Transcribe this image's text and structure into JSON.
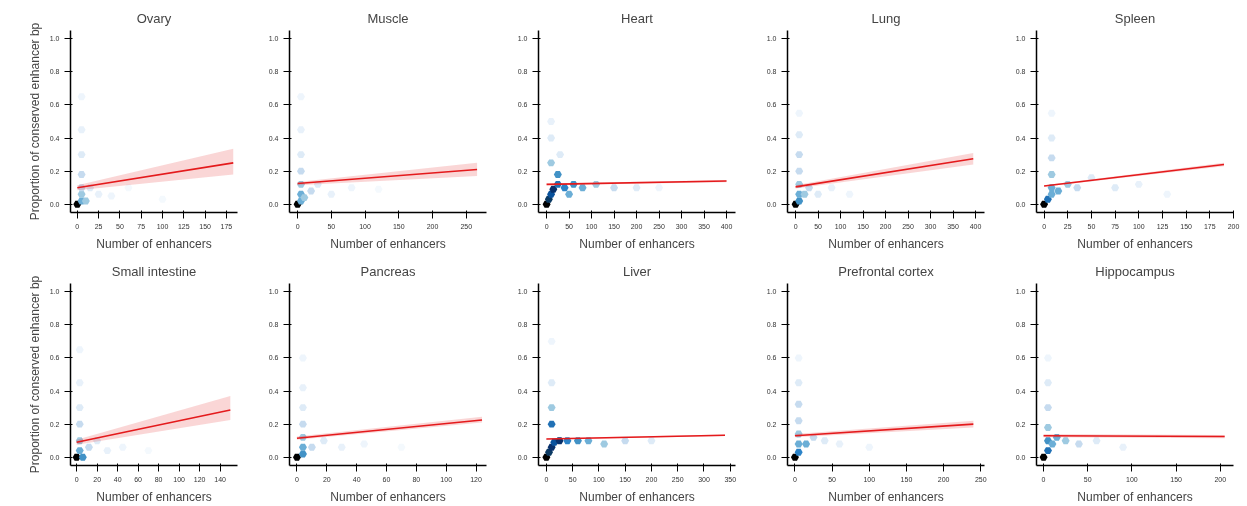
{
  "chart_data": [
    {
      "type": "line",
      "title": "Ovary",
      "xlabel": "Number of enhancers",
      "ylabel": "Proportion of conserved enhancer bp",
      "xlim": [
        -8,
        188
      ],
      "xticks": [
        0,
        25,
        50,
        75,
        100,
        125,
        150,
        175
      ],
      "ylim": [
        -0.05,
        1.05
      ],
      "yticks": [
        {
          "value": 0,
          "label": "0.0"
        },
        {
          "value": 0.2,
          "label": "0.2"
        },
        {
          "value": 0.4,
          "label": "0.4"
        },
        {
          "value": 0.6,
          "label": "0.6"
        },
        {
          "value": 0.8,
          "label": "0.8"
        },
        {
          "value": 1,
          "label": "1.0"
        }
      ],
      "grid": false,
      "series": [
        {
          "type": "scatter",
          "x": [
            0,
            5,
            5,
            5,
            5,
            5,
            5,
            10,
            15,
            25,
            40,
            5,
            60,
            100
          ],
          "values": [
            0,
            0.02,
            0.06,
            0.1,
            0.18,
            0.3,
            0.45,
            0.02,
            0.1,
            0.06,
            0.05,
            0.65,
            0.1,
            0.03
          ],
          "colors": [
            "#000000",
            "#6baed6",
            "#9ecae1",
            "#c6dbef",
            "#c6dbef",
            "#deebf7",
            "#e8f1fa",
            "#9ecae1",
            "#deebf7",
            "#e8f1fa",
            "#eef5fc",
            "#eef5fc",
            "#f4f9fd",
            "#f4f9fd"
          ]
        },
        {
          "color": "#e41a1c",
          "x": [
            0,
            183
          ],
          "values": [
            0.1,
            0.25
          ],
          "lower": [
            0.085,
            0.18
          ],
          "upper": [
            0.115,
            0.335
          ]
        }
      ]
    },
    {
      "type": "line",
      "title": "Muscle",
      "xlabel": "Number of enhancers",
      "xlim": [
        -12,
        280
      ],
      "xticks": [
        0,
        50,
        100,
        150,
        200,
        250
      ],
      "ylim": [
        -0.05,
        1.05
      ],
      "yticks": [
        {
          "value": 0,
          "label": "0.0"
        },
        {
          "value": 0.2,
          "label": "0.2"
        },
        {
          "value": 0.4,
          "label": "0.4"
        },
        {
          "value": 0.6,
          "label": "0.6"
        },
        {
          "value": 0.8,
          "label": "0.8"
        },
        {
          "value": 1,
          "label": "1.0"
        }
      ],
      "grid": false,
      "series": [
        {
          "type": "scatter",
          "x": [
            0,
            5,
            5,
            5,
            5,
            5,
            5,
            10,
            20,
            30,
            50,
            80,
            120,
            5
          ],
          "values": [
            0,
            0.02,
            0.06,
            0.12,
            0.2,
            0.3,
            0.45,
            0.04,
            0.08,
            0.12,
            0.06,
            0.1,
            0.09,
            0.65
          ],
          "colors": [
            "#000000",
            "#6baed6",
            "#6baed6",
            "#9ecae1",
            "#c6dbef",
            "#deebf7",
            "#e8f1fa",
            "#9ecae1",
            "#c6dbef",
            "#deebf7",
            "#e8f1fa",
            "#eef5fc",
            "#f4f9fd",
            "#eef5fc"
          ]
        },
        {
          "color": "#e41a1c",
          "x": [
            0,
            266
          ],
          "values": [
            0.125,
            0.21
          ],
          "lower": [
            0.115,
            0.17
          ],
          "upper": [
            0.135,
            0.25
          ]
        }
      ]
    },
    {
      "type": "line",
      "title": "Heart",
      "xlabel": "Number of enhancers",
      "xlim": [
        -18,
        420
      ],
      "xticks": [
        0,
        50,
        100,
        150,
        200,
        250,
        300,
        350,
        400
      ],
      "ylim": [
        -0.05,
        1.05
      ],
      "yticks": [
        {
          "value": 0,
          "label": "0.0"
        },
        {
          "value": 0.2,
          "label": "0.2"
        },
        {
          "value": 0.4,
          "label": "0.4"
        },
        {
          "value": 0.6,
          "label": "0.6"
        },
        {
          "value": 0.8,
          "label": "0.8"
        },
        {
          "value": 1,
          "label": "1.0"
        }
      ],
      "grid": false,
      "series": [
        {
          "type": "scatter",
          "x": [
            0,
            5,
            10,
            15,
            25,
            40,
            60,
            25,
            50,
            80,
            110,
            150,
            200,
            10,
            10,
            30,
            10,
            250
          ],
          "values": [
            0,
            0.03,
            0.06,
            0.09,
            0.12,
            0.1,
            0.12,
            0.18,
            0.06,
            0.1,
            0.12,
            0.1,
            0.1,
            0.25,
            0.4,
            0.3,
            0.5,
            0.1
          ],
          "colors": [
            "#000000",
            "#0b3a63",
            "#08519c",
            "#08306b",
            "#2171b5",
            "#2b83c8",
            "#4292c6",
            "#4292c6",
            "#6baed6",
            "#6baed6",
            "#9ecae1",
            "#c6dbef",
            "#deebf7",
            "#9ecae1",
            "#deebf7",
            "#deebf7",
            "#e8f1fa",
            "#eef5fc"
          ]
        },
        {
          "color": "#e41a1c",
          "x": [
            0,
            400
          ],
          "values": [
            0.12,
            0.14
          ],
          "lower": [
            0.115,
            0.133
          ],
          "upper": [
            0.125,
            0.147
          ]
        }
      ]
    },
    {
      "type": "line",
      "title": "Lung",
      "xlabel": "Number of enhancers",
      "xlim": [
        -18,
        420
      ],
      "xticks": [
        0,
        50,
        100,
        150,
        200,
        250,
        300,
        350,
        400
      ],
      "ylim": [
        -0.05,
        1.05
      ],
      "yticks": [
        {
          "value": 0,
          "label": "0.0"
        },
        {
          "value": 0.2,
          "label": "0.2"
        },
        {
          "value": 0.4,
          "label": "0.4"
        },
        {
          "value": 0.6,
          "label": "0.6"
        },
        {
          "value": 0.8,
          "label": "0.8"
        },
        {
          "value": 1,
          "label": "1.0"
        }
      ],
      "grid": false,
      "series": [
        {
          "type": "scatter",
          "x": [
            0,
            8,
            8,
            8,
            8,
            8,
            8,
            20,
            30,
            50,
            80,
            120,
            8
          ],
          "values": [
            0,
            0.02,
            0.06,
            0.12,
            0.2,
            0.3,
            0.42,
            0.06,
            0.1,
            0.06,
            0.1,
            0.06,
            0.55
          ],
          "colors": [
            "#000000",
            "#4292c6",
            "#6baed6",
            "#9ecae1",
            "#c6dbef",
            "#c6dbef",
            "#deebf7",
            "#9ecae1",
            "#c6dbef",
            "#deebf7",
            "#e8f1fa",
            "#eef5fc",
            "#eef5fc"
          ]
        },
        {
          "color": "#e41a1c",
          "x": [
            0,
            395
          ],
          "values": [
            0.105,
            0.275
          ],
          "lower": [
            0.095,
            0.24
          ],
          "upper": [
            0.115,
            0.31
          ]
        }
      ]
    },
    {
      "type": "line",
      "title": "Spleen",
      "xlabel": "Number of enhancers",
      "xlim": [
        -8,
        200
      ],
      "xticks": [
        0,
        25,
        50,
        75,
        100,
        125,
        150,
        175,
        200
      ],
      "ylim": [
        -0.05,
        1.05
      ],
      "yticks": [
        {
          "value": 0,
          "label": "0.0"
        },
        {
          "value": 0.2,
          "label": "0.2"
        },
        {
          "value": 0.4,
          "label": "0.4"
        },
        {
          "value": 0.6,
          "label": "0.6"
        },
        {
          "value": 0.8,
          "label": "0.8"
        },
        {
          "value": 1,
          "label": "1.0"
        }
      ],
      "grid": false,
      "series": [
        {
          "type": "scatter",
          "x": [
            0,
            4,
            8,
            8,
            8,
            8,
            8,
            15,
            25,
            35,
            50,
            75,
            100,
            130,
            8
          ],
          "values": [
            0,
            0.03,
            0.06,
            0.1,
            0.18,
            0.28,
            0.4,
            0.08,
            0.12,
            0.1,
            0.16,
            0.1,
            0.12,
            0.06,
            0.55
          ],
          "colors": [
            "#000000",
            "#2171b5",
            "#6baed6",
            "#6baed6",
            "#9ecae1",
            "#c6dbef",
            "#deebf7",
            "#6baed6",
            "#9ecae1",
            "#c6dbef",
            "#deebf7",
            "#deebf7",
            "#e8f1fa",
            "#eef5fc",
            "#eef5fc"
          ]
        },
        {
          "color": "#e41a1c",
          "x": [
            0,
            190
          ],
          "values": [
            0.11,
            0.24
          ],
          "lower": [
            0.105,
            0.23
          ],
          "upper": [
            0.115,
            0.25
          ]
        }
      ]
    },
    {
      "type": "line",
      "title": "Small intestine",
      "xlabel": "Number of enhancers",
      "ylabel": "Proportion of conserved enhancer bp",
      "xlim": [
        -6,
        157
      ],
      "xticks": [
        0,
        20,
        40,
        60,
        80,
        100,
        120,
        140
      ],
      "ylim": [
        -0.05,
        1.05
      ],
      "yticks": [
        {
          "value": 0,
          "label": "0.0"
        },
        {
          "value": 0.2,
          "label": "0.2"
        },
        {
          "value": 0.4,
          "label": "0.4"
        },
        {
          "value": 0.6,
          "label": "0.6"
        },
        {
          "value": 0.8,
          "label": "0.8"
        },
        {
          "value": 1,
          "label": "1.0"
        }
      ],
      "grid": false,
      "series": [
        {
          "type": "scatter",
          "x": [
            0,
            6,
            3,
            3,
            3,
            3,
            3,
            12,
            20,
            30,
            45,
            3,
            70
          ],
          "values": [
            0,
            0.0,
            0.04,
            0.1,
            0.2,
            0.3,
            0.45,
            0.06,
            0.1,
            0.04,
            0.06,
            0.65,
            0.04
          ],
          "colors": [
            "#000000",
            "#4292c6",
            "#6baed6",
            "#9ecae1",
            "#c6dbef",
            "#deebf7",
            "#e8f1fa",
            "#c6dbef",
            "#deebf7",
            "#e8f1fa",
            "#eef5fc",
            "#eef5fc",
            "#f4f9fd"
          ]
        },
        {
          "color": "#e41a1c",
          "x": [
            0,
            150
          ],
          "values": [
            0.09,
            0.285
          ],
          "lower": [
            0.075,
            0.225
          ],
          "upper": [
            0.105,
            0.37
          ]
        }
      ]
    },
    {
      "type": "line",
      "title": "Pancreas",
      "xlabel": "Number of enhancers",
      "xlim": [
        -5,
        127
      ],
      "xticks": [
        0,
        20,
        40,
        60,
        80,
        100,
        120
      ],
      "ylim": [
        -0.05,
        1.05
      ],
      "yticks": [
        {
          "value": 0,
          "label": "0.0"
        },
        {
          "value": 0.2,
          "label": "0.2"
        },
        {
          "value": 0.4,
          "label": "0.4"
        },
        {
          "value": 0.6,
          "label": "0.6"
        },
        {
          "value": 0.8,
          "label": "0.8"
        },
        {
          "value": 1,
          "label": "1.0"
        }
      ],
      "grid": false,
      "series": [
        {
          "type": "scatter",
          "x": [
            0,
            4,
            4,
            4,
            4,
            4,
            4,
            10,
            18,
            30,
            45,
            4,
            70
          ],
          "values": [
            0,
            0.02,
            0.06,
            0.12,
            0.2,
            0.3,
            0.42,
            0.06,
            0.1,
            0.06,
            0.08,
            0.6,
            0.06
          ],
          "colors": [
            "#000000",
            "#4292c6",
            "#6baed6",
            "#9ecae1",
            "#c6dbef",
            "#deebf7",
            "#e8f1fa",
            "#c6dbef",
            "#deebf7",
            "#e8f1fa",
            "#eef5fc",
            "#eef5fc",
            "#f4f9fd"
          ]
        },
        {
          "color": "#e41a1c",
          "x": [
            0,
            124
          ],
          "values": [
            0.115,
            0.225
          ],
          "lower": [
            0.105,
            0.21
          ],
          "upper": [
            0.125,
            0.245
          ]
        }
      ]
    },
    {
      "type": "line",
      "title": "Liver",
      "xlabel": "Number of enhancers",
      "xlim": [
        -15,
        360
      ],
      "xticks": [
        0,
        50,
        100,
        150,
        200,
        250,
        300,
        350
      ],
      "ylim": [
        -0.05,
        1.05
      ],
      "yticks": [
        {
          "value": 0,
          "label": "0.0"
        },
        {
          "value": 0.2,
          "label": "0.2"
        },
        {
          "value": 0.4,
          "label": "0.4"
        },
        {
          "value": 0.6,
          "label": "0.6"
        },
        {
          "value": 0.8,
          "label": "0.8"
        },
        {
          "value": 1,
          "label": "1.0"
        }
      ],
      "grid": false,
      "series": [
        {
          "type": "scatter",
          "x": [
            0,
            5,
            10,
            15,
            25,
            40,
            60,
            10,
            80,
            110,
            150,
            200,
            10,
            10,
            10
          ],
          "values": [
            0,
            0.03,
            0.06,
            0.09,
            0.1,
            0.1,
            0.1,
            0.2,
            0.1,
            0.08,
            0.1,
            0.1,
            0.3,
            0.45,
            0.7
          ],
          "colors": [
            "#000000",
            "#0b3a63",
            "#08306b",
            "#08519c",
            "#08306b",
            "#2b83c8",
            "#4292c6",
            "#2171b5",
            "#6baed6",
            "#9ecae1",
            "#c6dbef",
            "#deebf7",
            "#9ecae1",
            "#deebf7",
            "#eef5fc"
          ]
        },
        {
          "color": "#e41a1c",
          "x": [
            0,
            340
          ],
          "values": [
            0.11,
            0.133
          ],
          "lower": [
            0.105,
            0.128
          ],
          "upper": [
            0.115,
            0.138
          ]
        }
      ]
    },
    {
      "type": "line",
      "title": "Prefrontal cortex",
      "xlabel": "Number of enhancers",
      "xlim": [
        -10,
        255
      ],
      "xticks": [
        0,
        50,
        100,
        150,
        200,
        250
      ],
      "ylim": [
        -0.05,
        1.05
      ],
      "yticks": [
        {
          "value": 0,
          "label": "0.0"
        },
        {
          "value": 0.2,
          "label": "0.2"
        },
        {
          "value": 0.4,
          "label": "0.4"
        },
        {
          "value": 0.6,
          "label": "0.6"
        },
        {
          "value": 0.8,
          "label": "0.8"
        },
        {
          "value": 1,
          "label": "1.0"
        }
      ],
      "grid": false,
      "series": [
        {
          "type": "scatter",
          "x": [
            0,
            5,
            5,
            5,
            5,
            5,
            5,
            15,
            25,
            40,
            60,
            100,
            5
          ],
          "values": [
            0,
            0.03,
            0.08,
            0.14,
            0.22,
            0.32,
            0.45,
            0.08,
            0.12,
            0.1,
            0.08,
            0.06,
            0.6
          ],
          "colors": [
            "#000000",
            "#2b83c8",
            "#6baed6",
            "#9ecae1",
            "#c6dbef",
            "#c6dbef",
            "#deebf7",
            "#6baed6",
            "#c6dbef",
            "#deebf7",
            "#e8f1fa",
            "#eef5fc",
            "#eef5fc"
          ]
        },
        {
          "color": "#e41a1c",
          "x": [
            0,
            240
          ],
          "values": [
            0.13,
            0.2
          ],
          "lower": [
            0.12,
            0.18
          ],
          "upper": [
            0.14,
            0.22
          ]
        }
      ]
    },
    {
      "type": "line",
      "title": "Hippocampus",
      "xlabel": "Number of enhancers",
      "xlim": [
        -8,
        215
      ],
      "xticks": [
        0,
        50,
        100,
        150,
        200
      ],
      "ylim": [
        -0.05,
        1.05
      ],
      "yticks": [
        {
          "value": 0,
          "label": "0.0"
        },
        {
          "value": 0.2,
          "label": "0.2"
        },
        {
          "value": 0.4,
          "label": "0.4"
        },
        {
          "value": 0.6,
          "label": "0.6"
        },
        {
          "value": 0.8,
          "label": "0.8"
        },
        {
          "value": 1,
          "label": "1.0"
        }
      ],
      "grid": false,
      "series": [
        {
          "type": "scatter",
          "x": [
            0,
            5,
            5,
            10,
            5,
            5,
            5,
            15,
            25,
            40,
            60,
            90,
            5
          ],
          "values": [
            0,
            0.04,
            0.1,
            0.08,
            0.18,
            0.3,
            0.45,
            0.12,
            0.1,
            0.08,
            0.1,
            0.06,
            0.6
          ],
          "colors": [
            "#000000",
            "#2171b5",
            "#4292c6",
            "#6baed6",
            "#9ecae1",
            "#c6dbef",
            "#deebf7",
            "#6baed6",
            "#9ecae1",
            "#c6dbef",
            "#deebf7",
            "#e8f1fa",
            "#eef5fc"
          ]
        },
        {
          "color": "#e41a1c",
          "x": [
            0,
            205
          ],
          "values": [
            0.13,
            0.125
          ],
          "lower": [
            0.12,
            0.115
          ],
          "upper": [
            0.14,
            0.135
          ]
        }
      ]
    }
  ]
}
